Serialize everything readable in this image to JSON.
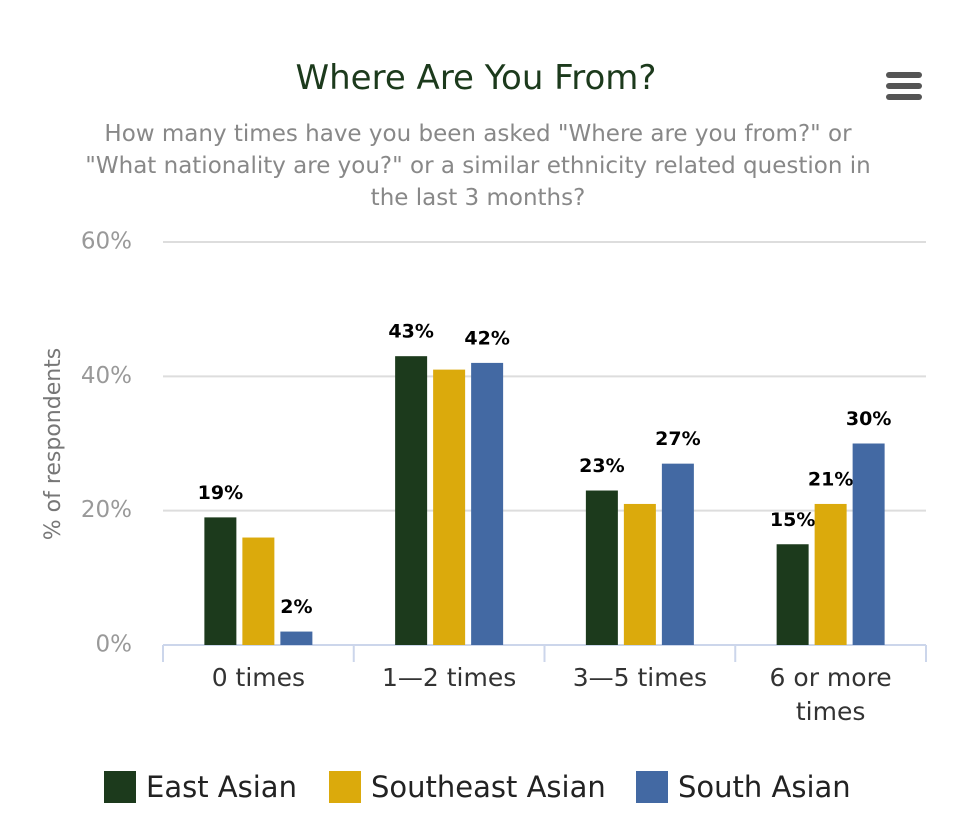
{
  "chart_data": {
    "type": "bar",
    "title": "Where Are You From?",
    "subtitle": "How many times have you been asked \"Where are you from?\" or \"What nationality are you?\" or a similar ethnicity related question in the last 3 months?",
    "y_label": "% of respondents",
    "categories": [
      "0 times",
      "1—2 times",
      "3—5 times",
      "6 or more times"
    ],
    "series": [
      {
        "name": "East Asian",
        "color": "#1c3a1c",
        "values": [
          19,
          43,
          23,
          15
        ],
        "value_labels": [
          "19%",
          "43%",
          "23%",
          "15%"
        ]
      },
      {
        "name": "Southeast Asian",
        "color": "#dbaa0c",
        "values": [
          16,
          41,
          21,
          21
        ],
        "value_labels": [
          null,
          null,
          null,
          "21%"
        ]
      },
      {
        "name": "South Asian",
        "color": "#4369a3",
        "values": [
          2,
          42,
          27,
          30
        ],
        "value_labels": [
          "2%",
          "42%",
          "27%",
          "30%"
        ]
      }
    ],
    "ylim": [
      0,
      60
    ],
    "yticks": [
      {
        "value": 0,
        "label": "0%"
      },
      {
        "value": 20,
        "label": "20%"
      },
      {
        "value": 40,
        "label": "40%"
      },
      {
        "value": 60,
        "label": "60%"
      }
    ],
    "grid": true,
    "legend": "bottom"
  }
}
